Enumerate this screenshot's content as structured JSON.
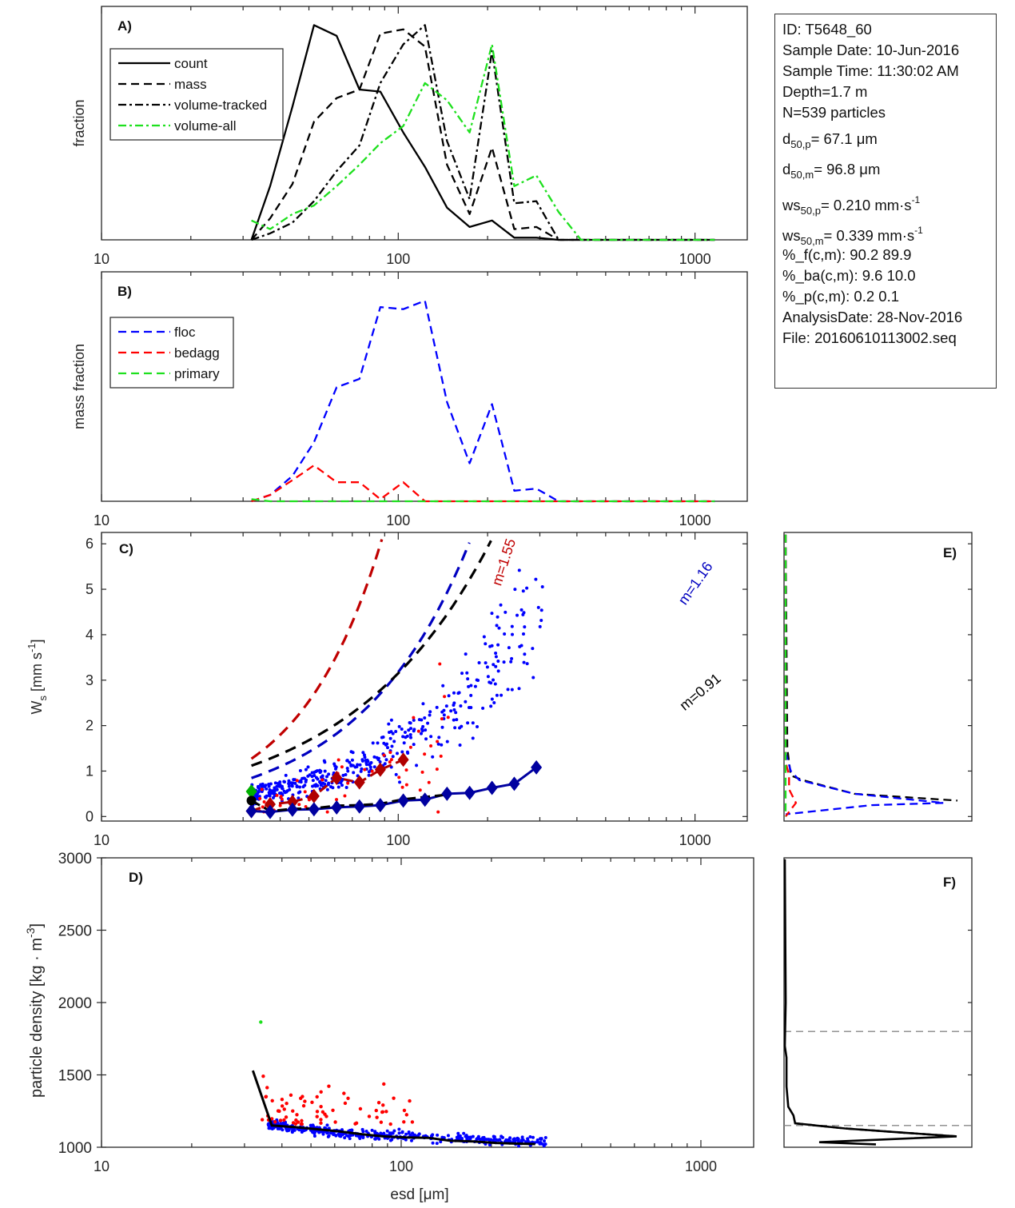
{
  "info_box": {
    "id": "ID: T5648_60",
    "sample_date": "Sample Date: 10-Jun-2016",
    "sample_time": "Sample Time: 11:30:02 AM",
    "depth": "Depth=1.7 m",
    "n": "N=539 particles",
    "d50p_base": "d",
    "d50p_sub": "50,p",
    "d50p_val": "=  67.1 μm",
    "d50m_base": "d",
    "d50m_sub": "50,m",
    "d50m_val": "=  96.8 μm",
    "ws50p_base": "ws",
    "ws50p_sub": "50,p",
    "ws50p_val": "= 0.210 mm·s",
    "ws50p_sup": "-1",
    "ws50m_base": "ws",
    "ws50m_sub": "50,m",
    "ws50m_val": "= 0.339 mm·s",
    "ws50m_sup": "-1",
    "pct_f": "%_f(c,m): 90.2 89.9",
    "pct_ba": "%_ba(c,m): 9.6 10.0",
    "pct_p": "%_p(c,m): 0.2 0.1",
    "analysis_date": "AnalysisDate: 28-Nov-2016",
    "file": "File: 20160610113002.seq"
  },
  "chart_data": [
    {
      "id": "A",
      "type": "line",
      "panel_label": "A)",
      "ylabel": "fraction",
      "xscale": "log",
      "xlim": [
        10,
        1500
      ],
      "ylim": [
        0,
        1
      ],
      "xticklabels": [
        "10",
        "100",
        "1000"
      ],
      "xticks": [
        10,
        100,
        1000
      ],
      "legend_position": "top-left",
      "x": [
        32,
        37,
        44,
        52,
        62,
        74,
        87,
        104,
        123,
        146,
        174,
        207,
        246,
        292,
        347,
        413,
        491,
        584,
        694,
        825,
        981,
        1166
      ],
      "series": [
        {
          "name": "count",
          "color": "#000000",
          "style": "solid",
          "values": [
            0.0,
            0.25,
            0.62,
            1.0,
            0.95,
            0.7,
            0.69,
            0.5,
            0.34,
            0.15,
            0.06,
            0.09,
            0.01,
            0.01,
            0.0,
            0.0,
            0.0,
            0.0,
            0.0,
            0.0,
            0.0,
            0.0
          ]
        },
        {
          "name": "mass",
          "color": "#000000",
          "style": "dashed",
          "values": [
            0.0,
            0.1,
            0.26,
            0.55,
            0.66,
            0.7,
            0.96,
            0.98,
            0.9,
            0.35,
            0.12,
            0.43,
            0.05,
            0.06,
            0.0,
            0.0,
            0.0,
            0.0,
            0.0,
            0.0,
            0.0,
            0.0
          ]
        },
        {
          "name": "volume-tracked",
          "color": "#000000",
          "style": "dashdot",
          "values": [
            0.0,
            0.03,
            0.08,
            0.18,
            0.32,
            0.44,
            0.73,
            0.91,
            1.0,
            0.46,
            0.19,
            0.88,
            0.17,
            0.18,
            0.0,
            0.0,
            0.0,
            0.0,
            0.0,
            0.0,
            0.0,
            0.0
          ]
        },
        {
          "name": "volume-all",
          "color": "#1ee01e",
          "style": "dashdot",
          "values": [
            0.09,
            0.05,
            0.12,
            0.16,
            0.25,
            0.35,
            0.45,
            0.53,
            0.73,
            0.65,
            0.5,
            0.91,
            0.25,
            0.3,
            0.13,
            0.0,
            0.0,
            0.0,
            0.0,
            0.0,
            0.0,
            0.0
          ]
        }
      ]
    },
    {
      "id": "B",
      "type": "line",
      "panel_label": "B)",
      "ylabel": "mass fraction",
      "xscale": "log",
      "xlim": [
        10,
        1500
      ],
      "ylim": [
        0,
        1
      ],
      "xticklabels": [
        "10",
        "100",
        "1000"
      ],
      "xticks": [
        10,
        100,
        1000
      ],
      "legend_position": "top-left",
      "x": [
        32,
        37,
        44,
        52,
        62,
        74,
        87,
        104,
        123,
        146,
        174,
        207,
        246,
        292,
        347,
        413,
        491,
        584,
        694,
        825,
        981,
        1166
      ],
      "series": [
        {
          "name": "floc",
          "color": "#0000ff",
          "style": "dashed",
          "values": [
            0.0,
            0.03,
            0.12,
            0.28,
            0.54,
            0.58,
            0.92,
            0.91,
            0.95,
            0.47,
            0.18,
            0.46,
            0.05,
            0.06,
            0.0,
            0.0,
            0.0,
            0.0,
            0.0,
            0.0,
            0.0,
            0.0
          ]
        },
        {
          "name": "bedagg",
          "color": "#ff0000",
          "style": "dashed",
          "values": [
            0.0,
            0.03,
            0.1,
            0.17,
            0.09,
            0.09,
            0.01,
            0.09,
            0.0,
            0.0,
            0.0,
            0.0,
            0.0,
            0.0,
            0.0,
            0.0,
            0.0,
            0.0,
            0.0,
            0.0,
            0.0,
            0.0
          ]
        },
        {
          "name": "primary",
          "color": "#1ee01e",
          "style": "dashed",
          "values": [
            0.01,
            0.0,
            0.0,
            0.0,
            0.0,
            0.0,
            0.0,
            0.0,
            0.0,
            0.0,
            0.0,
            0.0,
            0.0,
            0.0,
            0.0,
            0.0,
            0.0,
            0.0,
            0.0,
            0.0,
            0.0,
            0.0
          ]
        }
      ]
    },
    {
      "id": "C",
      "type": "scatter",
      "panel_label": "C)",
      "ylabel_main": "W",
      "ylabel_sub": "s",
      "ylabel_unit": " [mm s",
      "ylabel_sup": "-1",
      "ylabel_end": "]",
      "xscale": "log",
      "xlim": [
        10,
        1500
      ],
      "ylim": [
        -0.1,
        6.25
      ],
      "yticks": [
        0,
        1,
        2,
        3,
        4,
        5,
        6
      ],
      "yticklabels": [
        "0",
        "1",
        "2",
        "3",
        "4",
        "5",
        "6"
      ],
      "xticks": [
        10,
        100,
        1000
      ],
      "xticklabels": [
        "10",
        "100",
        "1000"
      ],
      "fits": [
        {
          "name": "bedagg-fit",
          "label": "m=1.55",
          "color": "#c00000",
          "exponent": 1.55,
          "coef": 0.0059,
          "x_range": [
            32,
            280
          ]
        },
        {
          "name": "floc-fit",
          "label": "m=1.16",
          "color": "#0000c0",
          "exponent": 1.16,
          "coef": 0.0152,
          "x_range": [
            32,
            1200
          ]
        },
        {
          "name": "all-fit",
          "label": "m=0.91",
          "color": "#000000",
          "exponent": 0.91,
          "coef": 0.0477,
          "x_range": [
            32,
            1170
          ]
        }
      ],
      "bin_means": {
        "bedagg": {
          "color": "#b00000",
          "x": [
            32,
            37,
            44,
            52,
            62,
            74,
            87,
            104
          ],
          "y": [
            0.12,
            0.27,
            0.32,
            0.45,
            0.85,
            0.75,
            1.03,
            1.25
          ]
        },
        "floc": {
          "color": "#0000a0",
          "x": [
            32,
            37,
            44,
            52,
            62,
            74,
            87,
            104,
            123,
            146,
            174,
            207,
            246,
            292
          ],
          "y": [
            0.12,
            0.1,
            0.15,
            0.16,
            0.2,
            0.22,
            0.25,
            0.35,
            0.37,
            0.5,
            0.52,
            0.63,
            0.72,
            1.08
          ]
        },
        "all": {
          "color": "#000000",
          "x": [
            32,
            37,
            44,
            52,
            62,
            74,
            87,
            104,
            123,
            146
          ],
          "y": [
            0.35,
            0.12,
            0.17,
            0.18,
            0.24,
            0.25,
            0.28,
            0.38,
            0.43,
            0.48
          ]
        },
        "primary": {
          "color": "#00b000",
          "x": [
            32
          ],
          "y": [
            0.55
          ]
        }
      },
      "scatter_note": "individual particle points: floc (blue), bedagg (red), primary (green)"
    },
    {
      "id": "D",
      "type": "scatter",
      "panel_label": "D)",
      "ylabel": "particle density [kg · m",
      "ylabel_sup": "-3",
      "ylabel_end": "]",
      "xlabel": "esd [μm]",
      "xscale": "log",
      "xlim": [
        10,
        1500
      ],
      "ylim": [
        1000,
        3000
      ],
      "yticks": [
        1000,
        1500,
        2000,
        2500,
        3000
      ],
      "yticklabels": [
        "1000",
        "1500",
        "2000",
        "2500",
        "3000"
      ],
      "xticks": [
        10,
        100,
        1000
      ],
      "xticklabels": [
        "10",
        "100",
        "1000"
      ],
      "mean_line": {
        "color": "#000000",
        "x": [
          32,
          37,
          44,
          52,
          62,
          74,
          87,
          104,
          123,
          146,
          174,
          207,
          246,
          280
        ],
        "y": [
          1530,
          1150,
          1140,
          1125,
          1110,
          1090,
          1075,
          1068,
          1065,
          1045,
          1040,
          1030,
          1025,
          1022
        ]
      },
      "primary_point": {
        "x": 34,
        "y": 1865
      }
    },
    {
      "id": "E",
      "type": "line",
      "panel_label": "E)",
      "ylim": [
        -0.1,
        6.25
      ],
      "note": "horizontal distribution of settling velocity (shares W_s axis with C)",
      "series": [
        {
          "name": "all",
          "color": "#000000",
          "style": "dashed",
          "y": [
            6.2,
            1.5,
            1.2,
            0.9,
            0.8,
            0.5,
            0.35
          ],
          "x": [
            0.0,
            0.01,
            0.02,
            0.03,
            0.1,
            0.4,
            1.0
          ]
        },
        {
          "name": "floc",
          "color": "#0000ff",
          "style": "dashed",
          "y": [
            6.2,
            1.4,
            1.0,
            0.8,
            0.5,
            0.3,
            0.25,
            0.05
          ],
          "x": [
            0.0,
            0.0,
            0.03,
            0.08,
            0.4,
            0.92,
            0.5,
            0.0
          ]
        },
        {
          "name": "bedagg",
          "color": "#ff0000",
          "style": "dashed",
          "y": [
            6.2,
            1.2,
            0.9,
            0.6,
            0.3,
            0.1,
            0.0
          ],
          "x": [
            0.0,
            0.0,
            0.02,
            0.02,
            0.06,
            0.02,
            0.0
          ]
        },
        {
          "name": "primary",
          "color": "#1ee01e",
          "style": "dashed",
          "y": [
            6.2,
            0.0
          ],
          "x": [
            0.0,
            0.0
          ]
        }
      ]
    },
    {
      "id": "F",
      "type": "line",
      "panel_label": "F)",
      "ylim": [
        1000,
        3000
      ],
      "reference_lines": [
        1800,
        1150
      ],
      "series": [
        {
          "name": "density-distribution",
          "color": "#000000",
          "style": "solid",
          "y": [
            2990,
            2000,
            1700,
            1620,
            1420,
            1280,
            1220,
            1165,
            1130,
            1100,
            1075,
            1035,
            1020
          ],
          "x": [
            0.0,
            0.005,
            0.0,
            0.01,
            0.01,
            0.02,
            0.05,
            0.06,
            0.35,
            0.7,
            1.0,
            0.2,
            0.53
          ]
        },
        {
          "name": "density-distribution-mass",
          "color": "#000000",
          "style": "dashed",
          "y": [
            1165,
            1130,
            1100,
            1075
          ],
          "x": [
            0.06,
            0.35,
            0.7,
            1.0
          ]
        }
      ]
    }
  ]
}
